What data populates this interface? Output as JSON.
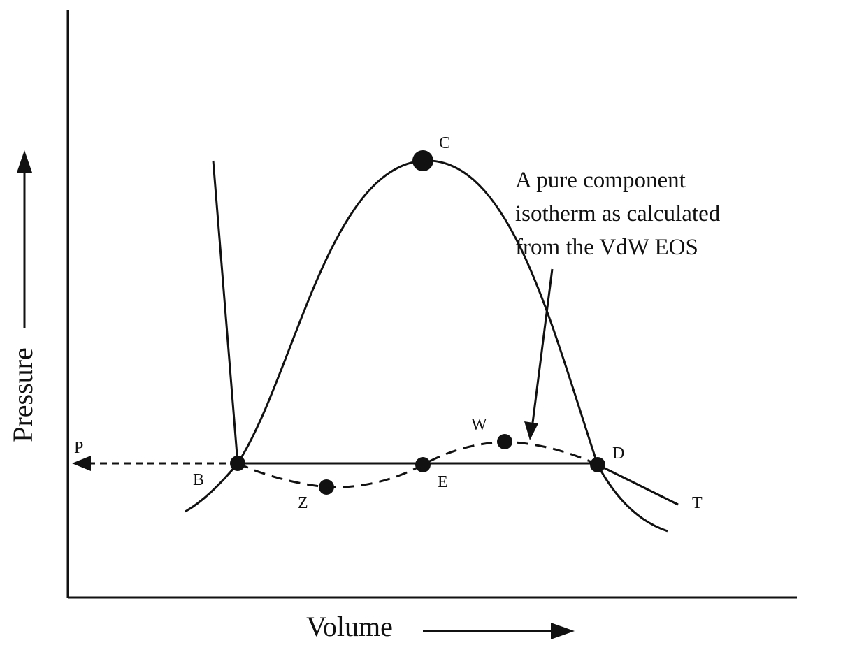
{
  "axes": {
    "y_label": "Pressure",
    "x_label": "Volume"
  },
  "points": [
    {
      "label": "C"
    },
    {
      "label": "W"
    },
    {
      "label": "D"
    },
    {
      "label": "T"
    },
    {
      "label": "P"
    },
    {
      "label": "B"
    },
    {
      "label": "Z"
    },
    {
      "label": "E"
    }
  ],
  "annotation": {
    "lines": [
      "A pure component",
      "isotherm as calculated",
      "from the VdW EOS"
    ]
  }
}
